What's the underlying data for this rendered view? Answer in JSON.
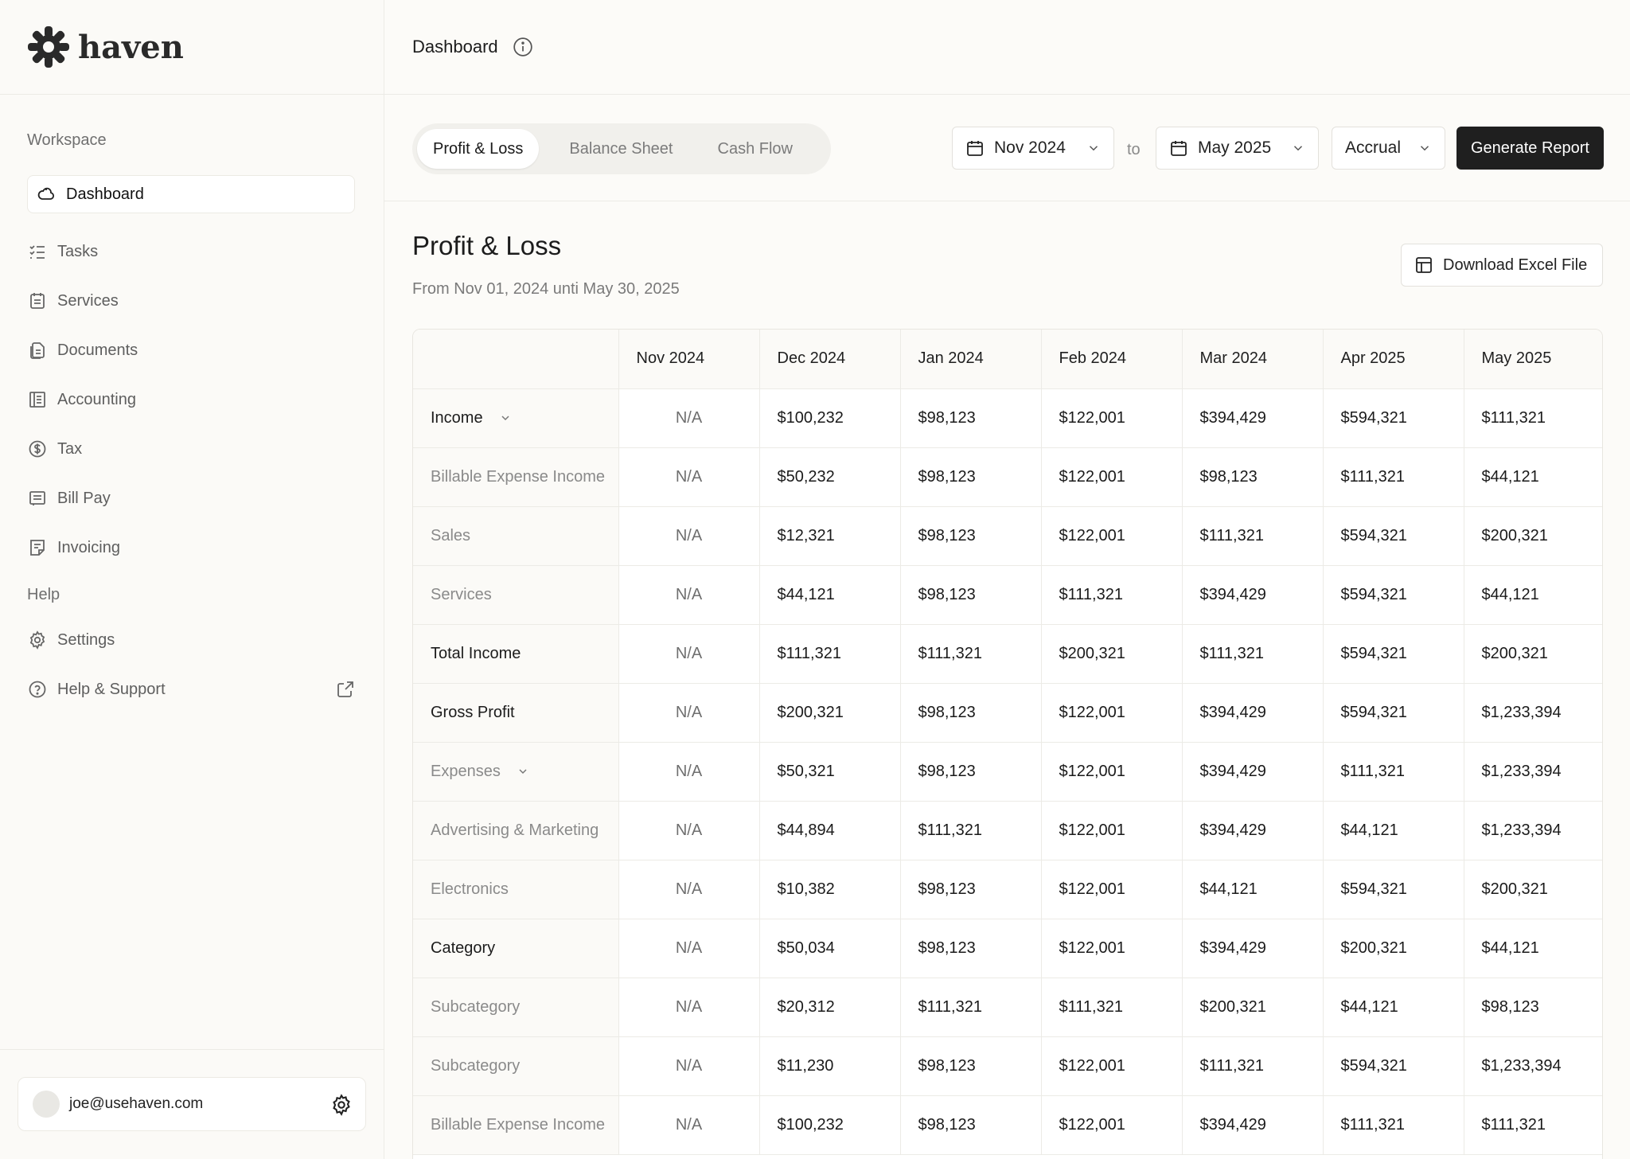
{
  "app": {
    "name": "haven"
  },
  "sidebar": {
    "workspace_label": "Workspace",
    "help_label": "Help",
    "items": [
      {
        "label": "Dashboard",
        "icon": "dashboard-icon",
        "active": true
      },
      {
        "label": "Tasks",
        "icon": "tasks-icon"
      },
      {
        "label": "Services",
        "icon": "services-icon"
      },
      {
        "label": "Documents",
        "icon": "documents-icon"
      },
      {
        "label": "Accounting",
        "icon": "accounting-icon"
      },
      {
        "label": "Tax",
        "icon": "dollar-icon"
      },
      {
        "label": "Bill Pay",
        "icon": "bill-pay-icon"
      },
      {
        "label": "Invoicing",
        "icon": "invoicing-icon"
      }
    ],
    "help_items": [
      {
        "label": "Settings",
        "icon": "gear-icon"
      },
      {
        "label": "Help & Support",
        "icon": "question-icon"
      }
    ],
    "user_email": "joe@usehaven.com"
  },
  "header": {
    "title": "Dashboard"
  },
  "tabs": [
    "Profit & Loss",
    "Balance Sheet",
    "Cash Flow"
  ],
  "filters": {
    "from": "Nov 2024",
    "to_label": "to",
    "to": "May 2025",
    "basis": "Accrual",
    "generate_label": "Generate Report"
  },
  "report": {
    "title": "Profit & Loss",
    "subtitle": "From Nov 01, 2024 unti May 30, 2025",
    "download_label": "Download Excel File",
    "columns": [
      "Nov 2024",
      "Dec 2024",
      "Jan 2024",
      "Feb 2024",
      "Mar 2024",
      "Apr 2025",
      "May 2025"
    ],
    "rows": [
      {
        "label": "Income",
        "bold": true,
        "expand": true,
        "values": [
          "N/A",
          "$100,232",
          "$98,123",
          "$122,001",
          "$394,429",
          "$594,321",
          "$111,321"
        ]
      },
      {
        "label": "Billable Expense Income",
        "bold": false,
        "values": [
          "N/A",
          "$50,232",
          "$98,123",
          "$122,001",
          "$98,123",
          "$111,321",
          "$44,121"
        ]
      },
      {
        "label": "Sales",
        "bold": false,
        "values": [
          "N/A",
          "$12,321",
          "$98,123",
          "$122,001",
          "$111,321",
          "$594,321",
          "$200,321"
        ]
      },
      {
        "label": "Services",
        "bold": false,
        "values": [
          "N/A",
          "$44,121",
          "$98,123",
          "$111,321",
          "$394,429",
          "$594,321",
          "$44,121"
        ]
      },
      {
        "label": "Total Income",
        "bold": true,
        "values": [
          "N/A",
          "$111,321",
          "$111,321",
          "$200,321",
          "$111,321",
          "$594,321",
          "$200,321"
        ]
      },
      {
        "label": "Gross Profit",
        "bold": true,
        "values": [
          "N/A",
          "$200,321",
          "$98,123",
          "$122,001",
          "$394,429",
          "$594,321",
          "$1,233,394"
        ]
      },
      {
        "label": "Expenses",
        "bold": false,
        "expand": true,
        "values": [
          "N/A",
          "$50,321",
          "$98,123",
          "$122,001",
          "$394,429",
          "$111,321",
          "$1,233,394"
        ]
      },
      {
        "label": "Advertising & Marketing",
        "bold": false,
        "values": [
          "N/A",
          "$44,894",
          "$111,321",
          "$122,001",
          "$394,429",
          "$44,121",
          "$1,233,394"
        ]
      },
      {
        "label": "Electronics",
        "bold": false,
        "values": [
          "N/A",
          "$10,382",
          "$98,123",
          "$122,001",
          "$44,121",
          "$594,321",
          "$200,321"
        ]
      },
      {
        "label": "Category",
        "bold": true,
        "values": [
          "N/A",
          "$50,034",
          "$98,123",
          "$122,001",
          "$394,429",
          "$200,321",
          "$44,121"
        ]
      },
      {
        "label": "Subcategory",
        "bold": false,
        "values": [
          "N/A",
          "$20,312",
          "$111,321",
          "$111,321",
          "$200,321",
          "$44,121",
          "$98,123"
        ]
      },
      {
        "label": "Subcategory",
        "bold": false,
        "values": [
          "N/A",
          "$11,230",
          "$98,123",
          "$122,001",
          "$111,321",
          "$594,321",
          "$1,233,394"
        ]
      },
      {
        "label": "Billable Expense Income",
        "bold": false,
        "values": [
          "N/A",
          "$100,232",
          "$98,123",
          "$122,001",
          "$394,429",
          "$111,321",
          "$111,321"
        ]
      }
    ]
  }
}
